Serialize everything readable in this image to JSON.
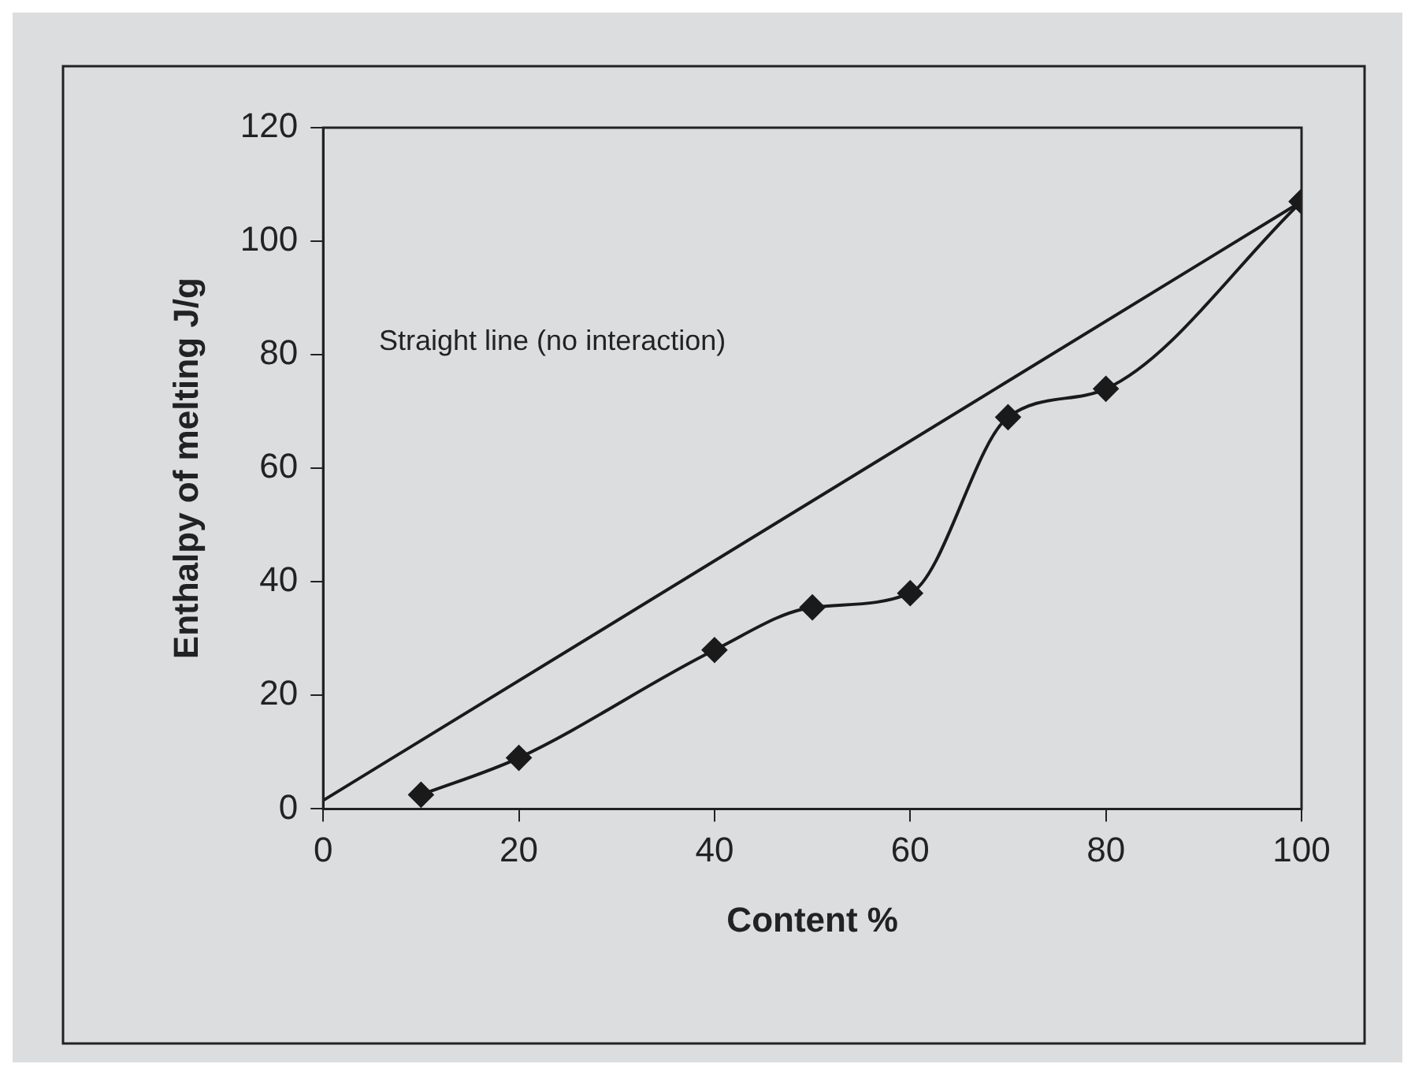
{
  "chart_data": {
    "type": "line",
    "xlabel": "Content %",
    "ylabel": "Enthalpy of melting J/g",
    "xlim": [
      0,
      100
    ],
    "xticks": [
      0,
      20,
      40,
      60,
      80,
      100
    ],
    "ylim": [
      0,
      120
    ],
    "yticks": [
      0,
      20,
      40,
      60,
      80,
      100,
      120
    ],
    "grid": false,
    "legend": false,
    "annotations": [
      "Straight line (no interaction)"
    ],
    "series": [
      {
        "color": "#1a1a1a",
        "x": [
          0,
          100
        ],
        "values": [
          1.5,
          107
        ]
      },
      {
        "color": "#1a1a1a",
        "marker": "diamond",
        "x": [
          10,
          20,
          40,
          50,
          60,
          70,
          80,
          100
        ],
        "values": [
          2.5,
          9,
          28,
          35.5,
          38,
          69,
          74,
          107
        ]
      }
    ]
  }
}
